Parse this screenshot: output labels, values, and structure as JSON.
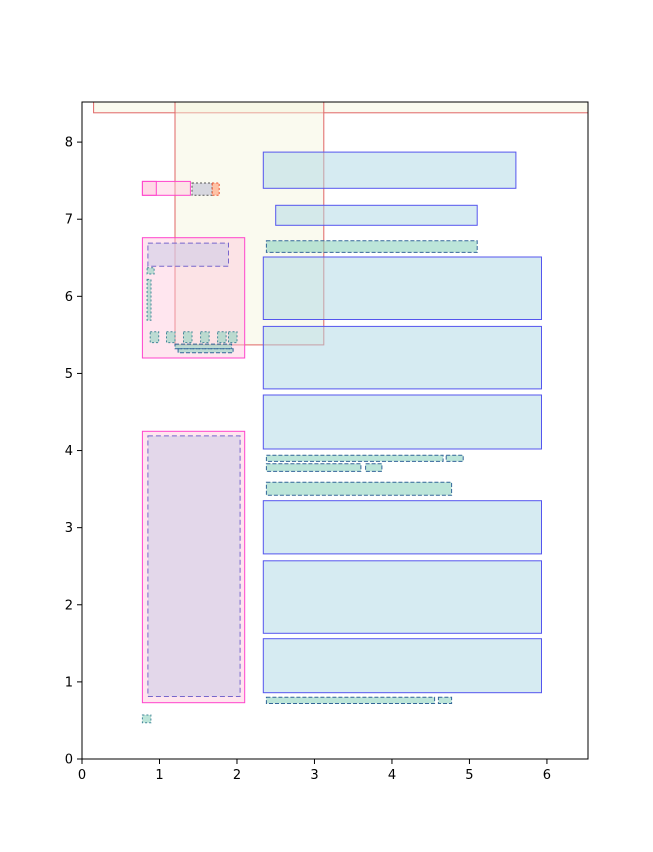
{
  "chart_data": {
    "type": "layout-boxes",
    "xlim": [
      0,
      6.53
    ],
    "ylim": [
      0,
      8.52
    ],
    "x_ticks": [
      "0",
      "1",
      "2",
      "3",
      "4",
      "5",
      "6"
    ],
    "y_ticks": [
      "0",
      "1",
      "2",
      "3",
      "4",
      "5",
      "6",
      "7",
      "8"
    ],
    "x_tick_values": [
      0,
      1,
      2,
      3,
      4,
      5,
      6
    ],
    "y_tick_values": [
      0,
      1,
      2,
      3,
      4,
      5,
      6,
      7,
      8
    ],
    "grid": false,
    "styles": {
      "header": {
        "fill": "#f5f5dc",
        "stroke": "#e06666",
        "fill_opacity": 0.45,
        "dash": "solid"
      },
      "panel": {
        "fill": "#ffc8dc",
        "stroke": "#ff44cc",
        "fill_opacity": 0.45,
        "dash": "solid"
      },
      "block": {
        "fill": "#add8e6",
        "stroke": "#5555ee",
        "fill_opacity": 0.5,
        "dash": "solid"
      },
      "text": {
        "fill": "#8fd3c0",
        "stroke": "#336699",
        "fill_opacity": 0.6,
        "dash": "4,2"
      },
      "image": {
        "fill": "#c8c8e6",
        "stroke": "#7766cc",
        "fill_opacity": 0.5,
        "dash": "5,3"
      },
      "icon": {
        "fill": "#8fd3c0",
        "stroke": "#448899",
        "fill_opacity": 0.6,
        "dash": "2,2"
      },
      "accent": {
        "fill": "#ffaa88",
        "stroke": "#ee5533",
        "fill_opacity": 0.7,
        "dash": "2,2"
      },
      "greybox": {
        "fill": "#c8c8d8",
        "stroke": "#555555",
        "fill_opacity": 0.7,
        "dash": "2,2"
      }
    },
    "boxes": [
      {
        "style": "header",
        "x0": 0.15,
        "y0": 8.38,
        "x1": 6.53,
        "y1": 8.52
      },
      {
        "style": "header",
        "x0": 1.2,
        "y0": 5.37,
        "x1": 3.12,
        "y1": 8.52
      },
      {
        "style": "block",
        "x0": 2.34,
        "y0": 7.4,
        "x1": 5.6,
        "y1": 7.87
      },
      {
        "style": "block",
        "x0": 2.5,
        "y0": 6.92,
        "x1": 5.1,
        "y1": 7.18
      },
      {
        "style": "text",
        "x0": 2.38,
        "y0": 6.57,
        "x1": 5.1,
        "y1": 6.72
      },
      {
        "style": "block",
        "x0": 2.34,
        "y0": 5.7,
        "x1": 5.93,
        "y1": 6.51
      },
      {
        "style": "block",
        "x0": 2.34,
        "y0": 4.8,
        "x1": 5.93,
        "y1": 5.61
      },
      {
        "style": "block",
        "x0": 2.34,
        "y0": 4.02,
        "x1": 5.93,
        "y1": 4.72
      },
      {
        "style": "text",
        "x0": 2.38,
        "y0": 3.86,
        "x1": 4.66,
        "y1": 3.94
      },
      {
        "style": "text",
        "x0": 4.7,
        "y0": 3.86,
        "x1": 4.92,
        "y1": 3.94
      },
      {
        "style": "text",
        "x0": 2.38,
        "y0": 3.73,
        "x1": 3.6,
        "y1": 3.83
      },
      {
        "style": "text",
        "x0": 3.66,
        "y0": 3.73,
        "x1": 3.87,
        "y1": 3.83
      },
      {
        "style": "text",
        "x0": 2.38,
        "y0": 3.42,
        "x1": 4.77,
        "y1": 3.59
      },
      {
        "style": "block",
        "x0": 2.34,
        "y0": 2.66,
        "x1": 5.93,
        "y1": 3.35
      },
      {
        "style": "block",
        "x0": 2.34,
        "y0": 1.63,
        "x1": 5.93,
        "y1": 2.57
      },
      {
        "style": "block",
        "x0": 2.34,
        "y0": 0.86,
        "x1": 5.93,
        "y1": 1.56
      },
      {
        "style": "text",
        "x0": 2.38,
        "y0": 0.72,
        "x1": 4.55,
        "y1": 0.8
      },
      {
        "style": "text",
        "x0": 4.6,
        "y0": 0.72,
        "x1": 4.77,
        "y1": 0.8
      },
      {
        "style": "panel",
        "x0": 0.78,
        "y0": 7.31,
        "x1": 1.4,
        "y1": 7.49
      },
      {
        "style": "panel",
        "x0": 0.78,
        "y0": 7.31,
        "x1": 0.96,
        "y1": 7.49
      },
      {
        "style": "greybox",
        "x0": 1.42,
        "y0": 7.31,
        "x1": 1.68,
        "y1": 7.47
      },
      {
        "style": "accent",
        "x0": 1.68,
        "y0": 7.31,
        "x1": 1.77,
        "y1": 7.47
      },
      {
        "style": "panel",
        "x0": 0.78,
        "y0": 5.2,
        "x1": 2.1,
        "y1": 6.76
      },
      {
        "style": "image",
        "x0": 0.85,
        "y0": 6.39,
        "x1": 1.89,
        "y1": 6.69
      },
      {
        "style": "icon",
        "x0": 0.84,
        "y0": 6.29,
        "x1": 0.93,
        "y1": 6.37
      },
      {
        "style": "icon",
        "x0": 0.84,
        "y0": 5.69,
        "x1": 0.89,
        "y1": 6.22
      },
      {
        "style": "icon",
        "x0": 0.88,
        "y0": 5.4,
        "x1": 0.99,
        "y1": 5.54
      },
      {
        "style": "icon",
        "x0": 1.09,
        "y0": 5.4,
        "x1": 1.2,
        "y1": 5.54
      },
      {
        "style": "icon",
        "x0": 1.31,
        "y0": 5.4,
        "x1": 1.42,
        "y1": 5.54
      },
      {
        "style": "icon",
        "x0": 1.53,
        "y0": 5.4,
        "x1": 1.64,
        "y1": 5.54
      },
      {
        "style": "icon",
        "x0": 1.75,
        "y0": 5.4,
        "x1": 1.86,
        "y1": 5.54
      },
      {
        "style": "icon",
        "x0": 1.89,
        "y0": 5.4,
        "x1": 2.0,
        "y1": 5.54
      },
      {
        "style": "text",
        "x0": 1.2,
        "y0": 5.32,
        "x1": 1.93,
        "y1": 5.38
      },
      {
        "style": "text",
        "x0": 1.24,
        "y0": 5.27,
        "x1": 1.95,
        "y1": 5.32
      },
      {
        "style": "panel",
        "x0": 0.78,
        "y0": 0.73,
        "x1": 2.1,
        "y1": 4.25
      },
      {
        "style": "image",
        "x0": 0.85,
        "y0": 0.81,
        "x1": 2.04,
        "y1": 4.19
      },
      {
        "style": "icon",
        "x0": 0.78,
        "y0": 0.47,
        "x1": 0.89,
        "y1": 0.57
      }
    ]
  }
}
